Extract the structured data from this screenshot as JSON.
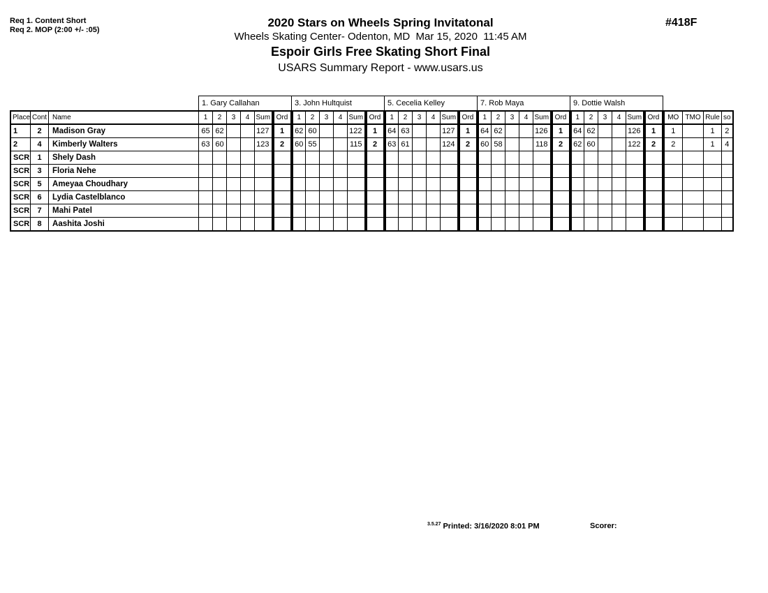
{
  "header": {
    "req_lines": [
      "Req 1. Content Short",
      "Req 2. MOP (2:00 +/- :05)"
    ],
    "event_number": "#418F",
    "title": "2020 Stars on Wheels Spring Invitatonal",
    "venue_line": "Wheels Skating Center- Odenton, MD  Mar 15, 2020  11:45 AM",
    "event_title": "Espoir Girls Free Skating Short Final",
    "report_title": "USARS Summary Report - www.usars.us"
  },
  "table": {
    "judges": [
      "1.  Gary Callahan",
      "3.  John  Hultquist",
      "5.  Cecelia Kelley",
      "7.  Rob Maya",
      "9.  Dottie Walsh"
    ],
    "left_headers": [
      "Place",
      "Cont",
      "Name"
    ],
    "score_headers": [
      "1",
      "2",
      "3",
      "4",
      "Sum",
      "Ord"
    ],
    "right_headers": [
      "MO",
      "TMO",
      "Rule",
      "so"
    ],
    "rows": [
      {
        "place": "1",
        "cont": "2",
        "name": "Madison Gray",
        "scores": [
          [
            "65",
            "62",
            "",
            "",
            "127",
            "1"
          ],
          [
            "62",
            "60",
            "",
            "",
            "122",
            "1"
          ],
          [
            "64",
            "63",
            "",
            "",
            "127",
            "1"
          ],
          [
            "64",
            "62",
            "",
            "",
            "126",
            "1"
          ],
          [
            "64",
            "62",
            "",
            "",
            "126",
            "1"
          ]
        ],
        "mo": "1",
        "tmo": "",
        "rule": "1",
        "so": "2"
      },
      {
        "place": "2",
        "cont": "4",
        "name": "Kimberly Walters",
        "scores": [
          [
            "63",
            "60",
            "",
            "",
            "123",
            "2"
          ],
          [
            "60",
            "55",
            "",
            "",
            "115",
            "2"
          ],
          [
            "63",
            "61",
            "",
            "",
            "124",
            "2"
          ],
          [
            "60",
            "58",
            "",
            "",
            "118",
            "2"
          ],
          [
            "62",
            "60",
            "",
            "",
            "122",
            "2"
          ]
        ],
        "mo": "2",
        "tmo": "",
        "rule": "1",
        "so": "4"
      },
      {
        "place": "SCR",
        "cont": "1",
        "name": "Shely Dash",
        "scores": [
          [
            "",
            "",
            "",
            "",
            "",
            ""
          ],
          [
            "",
            "",
            "",
            "",
            "",
            ""
          ],
          [
            "",
            "",
            "",
            "",
            "",
            ""
          ],
          [
            "",
            "",
            "",
            "",
            "",
            ""
          ],
          [
            "",
            "",
            "",
            "",
            "",
            ""
          ]
        ],
        "mo": "",
        "tmo": "",
        "rule": "",
        "so": ""
      },
      {
        "place": "SCR",
        "cont": "3",
        "name": "Floria Nehe",
        "scores": [
          [
            "",
            "",
            "",
            "",
            "",
            ""
          ],
          [
            "",
            "",
            "",
            "",
            "",
            ""
          ],
          [
            "",
            "",
            "",
            "",
            "",
            ""
          ],
          [
            "",
            "",
            "",
            "",
            "",
            ""
          ],
          [
            "",
            "",
            "",
            "",
            "",
            ""
          ]
        ],
        "mo": "",
        "tmo": "",
        "rule": "",
        "so": ""
      },
      {
        "place": "SCR",
        "cont": "5",
        "name": "Ameyaa Choudhary",
        "scores": [
          [
            "",
            "",
            "",
            "",
            "",
            ""
          ],
          [
            "",
            "",
            "",
            "",
            "",
            ""
          ],
          [
            "",
            "",
            "",
            "",
            "",
            ""
          ],
          [
            "",
            "",
            "",
            "",
            "",
            ""
          ],
          [
            "",
            "",
            "",
            "",
            "",
            ""
          ]
        ],
        "mo": "",
        "tmo": "",
        "rule": "",
        "so": ""
      },
      {
        "place": "SCR",
        "cont": "6",
        "name": "Lydia Castelblanco",
        "scores": [
          [
            "",
            "",
            "",
            "",
            "",
            ""
          ],
          [
            "",
            "",
            "",
            "",
            "",
            ""
          ],
          [
            "",
            "",
            "",
            "",
            "",
            ""
          ],
          [
            "",
            "",
            "",
            "",
            "",
            ""
          ],
          [
            "",
            "",
            "",
            "",
            "",
            ""
          ]
        ],
        "mo": "",
        "tmo": "",
        "rule": "",
        "so": ""
      },
      {
        "place": "SCR",
        "cont": "7",
        "name": "Mahi Patel",
        "scores": [
          [
            "",
            "",
            "",
            "",
            "",
            ""
          ],
          [
            "",
            "",
            "",
            "",
            "",
            ""
          ],
          [
            "",
            "",
            "",
            "",
            "",
            ""
          ],
          [
            "",
            "",
            "",
            "",
            "",
            ""
          ],
          [
            "",
            "",
            "",
            "",
            "",
            ""
          ]
        ],
        "mo": "",
        "tmo": "",
        "rule": "",
        "so": ""
      },
      {
        "place": "SCR",
        "cont": "8",
        "name": "Aashita Joshi",
        "scores": [
          [
            "",
            "",
            "",
            "",
            "",
            ""
          ],
          [
            "",
            "",
            "",
            "",
            "",
            ""
          ],
          [
            "",
            "",
            "",
            "",
            "",
            ""
          ],
          [
            "",
            "",
            "",
            "",
            "",
            ""
          ],
          [
            "",
            "",
            "",
            "",
            "",
            ""
          ]
        ],
        "mo": "",
        "tmo": "",
        "rule": "",
        "so": ""
      }
    ]
  },
  "footer": {
    "version": "3.5.27",
    "printed_label": "Printed:",
    "printed_value": "3/16/2020 8:01 PM",
    "scorer_label": "Scorer:"
  }
}
